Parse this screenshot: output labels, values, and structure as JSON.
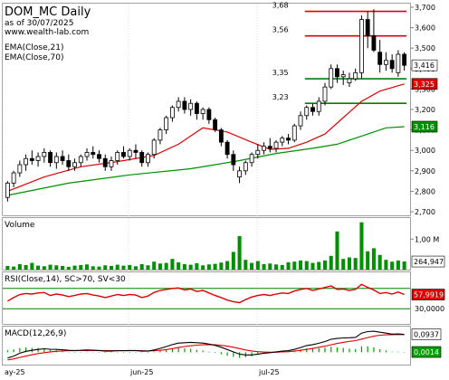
{
  "header": {
    "title": "DOM_MC Daily",
    "subtitle": "as of 30/07/2025",
    "website": "www.wealth-lab.com",
    "ema_labels": [
      "EMA(Close,21)",
      "EMA(Close,70)"
    ]
  },
  "colors": {
    "up_candle": "#ffffff",
    "down_candle": "#000000",
    "ema21": "#e00000",
    "ema70": "#009000",
    "level_resistance": "#e00000",
    "level_support": "#008000",
    "volume": "#009000",
    "rsi": "#e00000",
    "macd": "#000000",
    "macd_signal": "#e00000",
    "macd_hist": "#00a000"
  },
  "chart_data": [
    {
      "type": "candlestick",
      "name": "price",
      "ylim": [
        2700,
        3700
      ],
      "y_ticks": [
        2700,
        2800,
        2900,
        3000,
        3100,
        3200,
        3300,
        3400,
        3500,
        3600,
        3700
      ],
      "y_tick_labels": [
        "2,700",
        "2,800",
        "2,900",
        "3,000",
        "3,100",
        "3,200",
        "3,300",
        "3,400",
        "3,500",
        "3,600",
        "3,700"
      ],
      "x_tick_labels": [
        "ay-25",
        "jun-25",
        "jul-25"
      ],
      "candles": [
        [
          2770,
          2850,
          2750,
          2840
        ],
        [
          2840,
          2900,
          2820,
          2890
        ],
        [
          2890,
          2950,
          2870,
          2930
        ],
        [
          2930,
          2980,
          2900,
          2960
        ],
        [
          2960,
          3000,
          2930,
          2950
        ],
        [
          2950,
          2990,
          2920,
          2970
        ],
        [
          2970,
          3010,
          2940,
          2990
        ],
        [
          2990,
          3000,
          2920,
          2940
        ],
        [
          2940,
          2990,
          2910,
          2970
        ],
        [
          2970,
          3000,
          2930,
          2950
        ],
        [
          2950,
          2980,
          2900,
          2920
        ],
        [
          2920,
          2960,
          2900,
          2940
        ],
        [
          2940,
          2980,
          2920,
          2970
        ],
        [
          2970,
          3010,
          2950,
          2990
        ],
        [
          2990,
          3020,
          2960,
          2980
        ],
        [
          2980,
          3000,
          2940,
          2960
        ],
        [
          2960,
          2980,
          2900,
          2920
        ],
        [
          2920,
          2970,
          2900,
          2950
        ],
        [
          2950,
          3000,
          2930,
          2990
        ],
        [
          2990,
          3020,
          2960,
          2970
        ],
        [
          2970,
          3010,
          2950,
          3000
        ],
        [
          3000,
          3030,
          2960,
          2990
        ],
        [
          2990,
          3000,
          2920,
          2940
        ],
        [
          2940,
          2990,
          2920,
          2980
        ],
        [
          2980,
          3060,
          2960,
          3050
        ],
        [
          3050,
          3110,
          3030,
          3100
        ],
        [
          3100,
          3170,
          3080,
          3160
        ],
        [
          3160,
          3220,
          3140,
          3210
        ],
        [
          3210,
          3260,
          3190,
          3240
        ],
        [
          3240,
          3260,
          3180,
          3200
        ],
        [
          3200,
          3250,
          3170,
          3230
        ],
        [
          3230,
          3240,
          3150,
          3180
        ],
        [
          3180,
          3210,
          3150,
          3200
        ],
        [
          3200,
          3210,
          3130,
          3150
        ],
        [
          3150,
          3160,
          3090,
          3100
        ],
        [
          3100,
          3110,
          3020,
          3040
        ],
        [
          3040,
          3050,
          2960,
          2980
        ],
        [
          2980,
          3000,
          2900,
          2930
        ],
        [
          2870,
          2920,
          2840,
          2900
        ],
        [
          2900,
          2950,
          2880,
          2940
        ],
        [
          2940,
          2990,
          2920,
          2980
        ],
        [
          2980,
          3030,
          2960,
          3000
        ],
        [
          3000,
          3040,
          2980,
          3020
        ],
        [
          3020,
          3060,
          2990,
          3010
        ],
        [
          3010,
          3050,
          2990,
          3040
        ],
        [
          3040,
          3070,
          3020,
          3060
        ],
        [
          3060,
          3080,
          3030,
          3050
        ],
        [
          3050,
          3130,
          3040,
          3120
        ],
        [
          3120,
          3190,
          3100,
          3170
        ],
        [
          3170,
          3220,
          3150,
          3210
        ],
        [
          3210,
          3230,
          3170,
          3190
        ],
        [
          3190,
          3260,
          3170,
          3240
        ],
        [
          3240,
          3330,
          3220,
          3310
        ],
        [
          3310,
          3420,
          3300,
          3400
        ],
        [
          3400,
          3420,
          3330,
          3360
        ],
        [
          3360,
          3390,
          3320,
          3370
        ],
        [
          3330,
          3380,
          3310,
          3350
        ],
        [
          3350,
          3400,
          3340,
          3380
        ],
        [
          3380,
          3660,
          3350,
          3640
        ],
        [
          3640,
          3680,
          3500,
          3560
        ],
        [
          3560,
          3690,
          3480,
          3490
        ],
        [
          3480,
          3540,
          3380,
          3420
        ],
        [
          3420,
          3480,
          3390,
          3440
        ],
        [
          3440,
          3470,
          3380,
          3400
        ],
        [
          3380,
          3490,
          3360,
          3470
        ],
        [
          3470,
          3480,
          3390,
          3416
        ]
      ],
      "ema21": [
        [
          0,
          2800
        ],
        [
          6,
          2870
        ],
        [
          12,
          2920
        ],
        [
          18,
          2945
        ],
        [
          24,
          2975
        ],
        [
          28,
          3030
        ],
        [
          32,
          3110
        ],
        [
          36,
          3090
        ],
        [
          40,
          3040
        ],
        [
          43,
          3005
        ],
        [
          46,
          3010
        ],
        [
          49,
          3040
        ],
        [
          52,
          3080
        ],
        [
          55,
          3160
        ],
        [
          58,
          3240
        ],
        [
          61,
          3290
        ],
        [
          65,
          3325
        ]
      ],
      "ema70": [
        [
          0,
          2780
        ],
        [
          10,
          2840
        ],
        [
          20,
          2880
        ],
        [
          30,
          2910
        ],
        [
          38,
          2950
        ],
        [
          44,
          2985
        ],
        [
          50,
          3010
        ],
        [
          54,
          3030
        ],
        [
          58,
          3070
        ],
        [
          62,
          3110
        ],
        [
          65,
          3116
        ]
      ],
      "levels": [
        {
          "value": 3680,
          "label": "3,68",
          "color": "#e00000",
          "from": 49
        },
        {
          "value": 3560,
          "label": "3,56",
          "color": "#e00000",
          "from": 49
        },
        {
          "value": 3350,
          "label": "3,35",
          "color": "#008000",
          "from": 49
        },
        {
          "value": 3230,
          "label": "3,23",
          "color": "#008000",
          "from": 49
        }
      ],
      "last_labels": [
        {
          "value": 3416,
          "text": "3,416",
          "bg": "#ffffff",
          "fg": "#000000"
        },
        {
          "value": 3325,
          "text": "3,325",
          "bg": "#e00000",
          "fg": "#ffffff"
        },
        {
          "value": 3116,
          "text": "3,116",
          "bg": "#009000",
          "fg": "#ffffff"
        }
      ]
    },
    {
      "type": "bar",
      "name": "volume",
      "title": "Volume",
      "ylim": [
        0,
        1.6
      ],
      "y_tick_label": "1,00 M",
      "y_tick_value": 1.0,
      "last_label": "264,947",
      "last_value": 0.265,
      "values": [
        0.12,
        0.1,
        0.18,
        0.15,
        0.22,
        0.13,
        0.11,
        0.16,
        0.14,
        0.12,
        0.09,
        0.13,
        0.15,
        0.17,
        0.11,
        0.1,
        0.14,
        0.12,
        0.16,
        0.13,
        0.15,
        0.11,
        0.18,
        0.14,
        0.26,
        0.2,
        0.22,
        0.35,
        0.24,
        0.18,
        0.16,
        0.21,
        0.14,
        0.17,
        0.19,
        0.23,
        0.28,
        0.58,
        1.1,
        0.32,
        0.22,
        0.28,
        0.18,
        0.2,
        0.17,
        0.15,
        0.24,
        0.26,
        0.3,
        0.28,
        0.22,
        0.25,
        0.3,
        0.45,
        1.25,
        0.35,
        0.4,
        0.38,
        1.55,
        0.6,
        0.7,
        0.48,
        0.32,
        0.26,
        0.3,
        0.265
      ]
    },
    {
      "type": "line",
      "name": "rsi",
      "title": "RSI(Close,14), SC>70, SV<30",
      "ylim": [
        0,
        100
      ],
      "levels": [
        70,
        30
      ],
      "y_tick_label": "30,0000",
      "y_tick_value": 30,
      "last_label": "57,9919",
      "last_value": 57.99,
      "values": [
        45,
        52,
        58,
        60,
        59,
        61,
        62,
        56,
        59,
        57,
        54,
        56,
        59,
        60,
        57,
        55,
        52,
        55,
        58,
        56,
        58,
        57,
        52,
        55,
        62,
        66,
        68,
        70,
        71,
        67,
        69,
        64,
        66,
        61,
        56,
        52,
        47,
        44,
        42,
        48,
        53,
        56,
        58,
        56,
        59,
        61,
        60,
        65,
        68,
        70,
        66,
        69,
        72,
        75,
        68,
        69,
        66,
        68,
        78,
        72,
        67,
        60,
        62,
        59,
        63,
        58
      ]
    },
    {
      "type": "line",
      "name": "macd",
      "title": "MACD(12,26,9)",
      "last_labels": [
        {
          "text": "0,0937",
          "color": "#000000",
          "value": 0.0937
        },
        {
          "text": "0,0014",
          "color": "#00a000",
          "value": 0.0014
        }
      ],
      "ylim": [
        -0.06,
        0.12
      ],
      "macd": [
        -0.03,
        -0.02,
        -0.005,
        0.005,
        0.01,
        0.015,
        0.018,
        0.016,
        0.015,
        0.013,
        0.01,
        0.009,
        0.01,
        0.012,
        0.011,
        0.009,
        0.006,
        0.006,
        0.008,
        0.008,
        0.009,
        0.009,
        0.006,
        0.006,
        0.012,
        0.02,
        0.03,
        0.04,
        0.048,
        0.05,
        0.052,
        0.05,
        0.048,
        0.043,
        0.036,
        0.026,
        0.014,
        0.002,
        -0.01,
        -0.014,
        -0.014,
        -0.01,
        -0.005,
        -0.002,
        0.002,
        0.006,
        0.008,
        0.015,
        0.025,
        0.035,
        0.04,
        0.047,
        0.056,
        0.068,
        0.072,
        0.075,
        0.076,
        0.078,
        0.1,
        0.108,
        0.11,
        0.105,
        0.1,
        0.095,
        0.096,
        0.0937
      ],
      "signal": [
        -0.04,
        -0.035,
        -0.027,
        -0.02,
        -0.013,
        -0.007,
        -0.002,
        0.002,
        0.005,
        0.007,
        0.008,
        0.008,
        0.009,
        0.009,
        0.009,
        0.009,
        0.009,
        0.008,
        0.008,
        0.008,
        0.008,
        0.008,
        0.008,
        0.007,
        0.008,
        0.01,
        0.014,
        0.019,
        0.025,
        0.03,
        0.034,
        0.037,
        0.039,
        0.04,
        0.039,
        0.036,
        0.032,
        0.026,
        0.019,
        0.012,
        0.007,
        0.003,
        0.001,
        0.0,
        0.0,
        0.002,
        0.003,
        0.006,
        0.01,
        0.015,
        0.02,
        0.026,
        0.032,
        0.039,
        0.046,
        0.052,
        0.057,
        0.061,
        0.069,
        0.077,
        0.084,
        0.089,
        0.091,
        0.092,
        0.093,
        0.0923
      ]
    }
  ]
}
